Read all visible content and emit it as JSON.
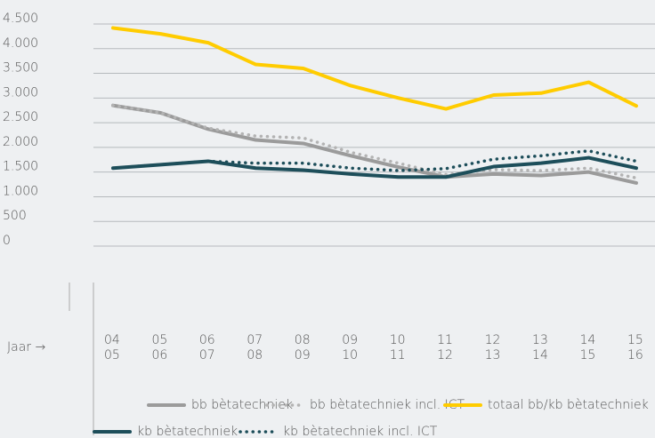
{
  "chart_data": {
    "type": "line",
    "x_label": "Jaar →",
    "categories": [
      [
        "04",
        "05"
      ],
      [
        "05",
        "06"
      ],
      [
        "06",
        "07"
      ],
      [
        "07",
        "08"
      ],
      [
        "08",
        "09"
      ],
      [
        "09",
        "10"
      ],
      [
        "10",
        "11"
      ],
      [
        "11",
        "12"
      ],
      [
        "12",
        "13"
      ],
      [
        "13",
        "14"
      ],
      [
        "14",
        "15"
      ],
      [
        "15",
        "16"
      ]
    ],
    "series": [
      {
        "name": "bb bètatechniek",
        "color": "#9b9b9b",
        "dash": false,
        "values": [
          2850,
          2700,
          2370,
          2150,
          2080,
          1830,
          1600,
          1400,
          1460,
          1430,
          1500,
          1280
        ]
      },
      {
        "name": "bb bètatechniek incl. ICT",
        "color": "#b3b3b3",
        "dash": true,
        "values": [
          2850,
          2700,
          2390,
          2230,
          2190,
          1900,
          1680,
          1450,
          1550,
          1530,
          1580,
          1380
        ]
      },
      {
        "name": "totaal bb/kb bètatechniek",
        "color": "#ffcc00",
        "dash": false,
        "values": [
          4420,
          4300,
          4120,
          3680,
          3600,
          3250,
          3000,
          2780,
          3060,
          3100,
          3320,
          2840
        ]
      },
      {
        "name": "kb bètatechniek",
        "color": "#1d4e5a",
        "dash": false,
        "values": [
          1580,
          1650,
          1720,
          1580,
          1540,
          1460,
          1400,
          1400,
          1610,
          1680,
          1790,
          1580
        ]
      },
      {
        "name": "kb bètatechniek incl. ICT",
        "color": "#1d4e5a",
        "dash": true,
        "values": [
          1580,
          1650,
          1720,
          1680,
          1680,
          1580,
          1530,
          1570,
          1760,
          1830,
          1930,
          1720
        ]
      }
    ],
    "ylim": [
      0,
      4500
    ],
    "yticks": [
      0,
      500,
      {
        "value": 1000,
        "label": "1.000"
      },
      {
        "value": 1500,
        "label": "1.500"
      },
      {
        "value": 2000,
        "label": "2.000"
      },
      {
        "value": 2500,
        "label": "2.500"
      },
      {
        "value": 3000,
        "label": "3.000"
      },
      {
        "value": 3500,
        "label": "3.500"
      },
      {
        "value": 4000,
        "label": "4.000"
      },
      {
        "value": 4500,
        "label": "4.500"
      }
    ],
    "grid": true
  }
}
